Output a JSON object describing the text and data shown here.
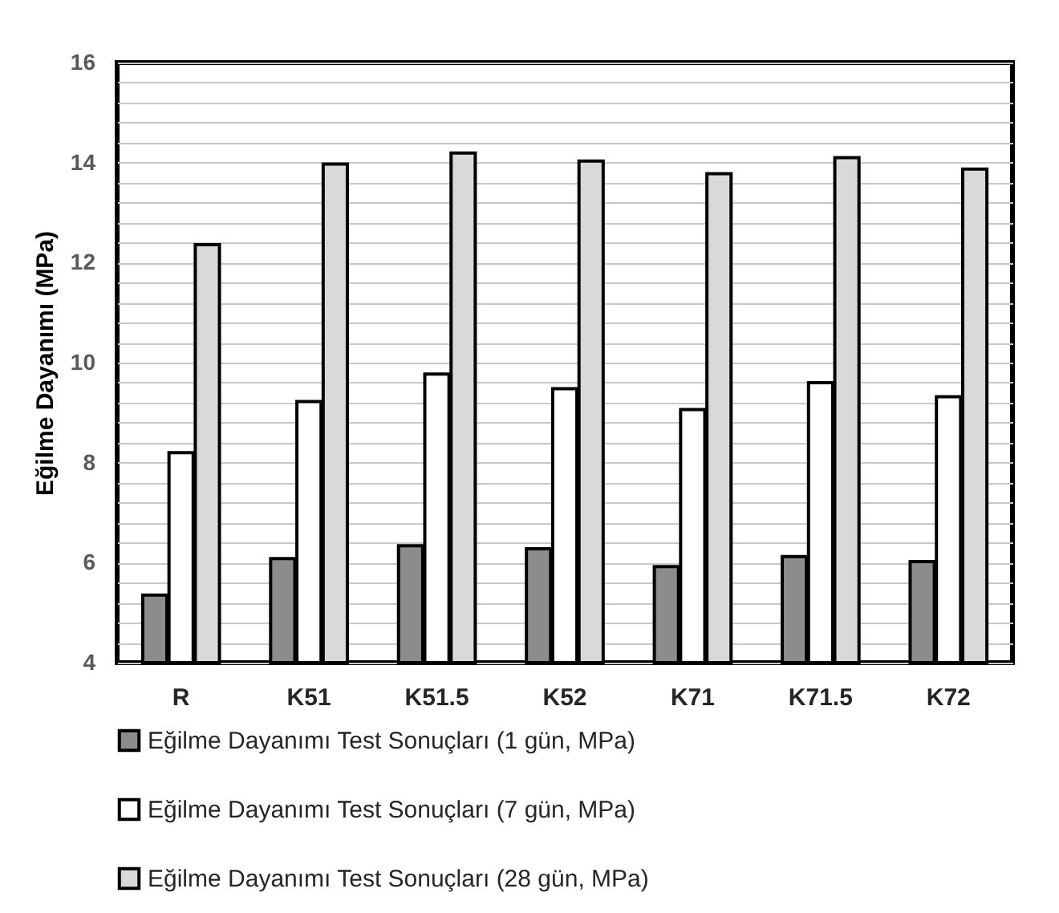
{
  "chart_data": {
    "type": "bar",
    "ylabel": "Eğilme  Dayanımı (MPa)",
    "categories": [
      "R",
      "K51",
      "K51.5",
      "K52",
      "K71",
      "K71.5",
      "K72"
    ],
    "series": [
      {
        "name": "Eğilme Dayanımı Test Sonuçları (1 gün, MPa)",
        "color": "#8c8c8c",
        "values": [
          5.35,
          6.08,
          6.34,
          6.28,
          5.92,
          6.12,
          6.02
        ]
      },
      {
        "name": "Eğilme Dayanımı Test Sonuçları (7 gün, MPa)",
        "color": "#ffffff",
        "values": [
          8.2,
          9.22,
          9.77,
          9.48,
          9.06,
          9.6,
          9.32
        ]
      },
      {
        "name": "Eğilme Dayanımı Test Sonuçları (28 gün, MPa)",
        "color": "#d9d9d9",
        "values": [
          12.36,
          13.97,
          14.19,
          14.03,
          13.78,
          14.1,
          13.87
        ]
      }
    ],
    "ylim": [
      4,
      16
    ],
    "yticks": [
      4,
      {
        "value": 4.4,
        "label": null
      },
      {
        "value": 4.8,
        "label": null
      },
      {
        "value": 5.2,
        "label": null
      },
      {
        "value": 5.6,
        "label": null
      },
      6,
      {
        "value": 6.4,
        "label": null
      },
      {
        "value": 6.8,
        "label": null
      },
      {
        "value": 7.2,
        "label": null
      },
      {
        "value": 7.6,
        "label": null
      },
      8,
      {
        "value": 8.4,
        "label": null
      },
      {
        "value": 8.8,
        "label": null
      },
      {
        "value": 9.2,
        "label": null
      },
      {
        "value": 9.6,
        "label": null
      },
      10,
      {
        "value": 10.4,
        "label": null
      },
      {
        "value": 10.8,
        "label": null
      },
      {
        "value": 11.2,
        "label": null
      },
      {
        "value": 11.6,
        "label": null
      },
      12,
      {
        "value": 12.4,
        "label": null
      },
      {
        "value": 12.8,
        "label": null
      },
      {
        "value": 13.2,
        "label": null
      },
      {
        "value": 13.6,
        "label": null
      },
      14,
      {
        "value": 14.4,
        "label": null
      },
      {
        "value": 14.8,
        "label": null
      },
      {
        "value": 15.2,
        "label": null
      },
      {
        "value": 15.6,
        "label": null
      },
      16
    ],
    "grid": "y",
    "legend": "bottom"
  }
}
